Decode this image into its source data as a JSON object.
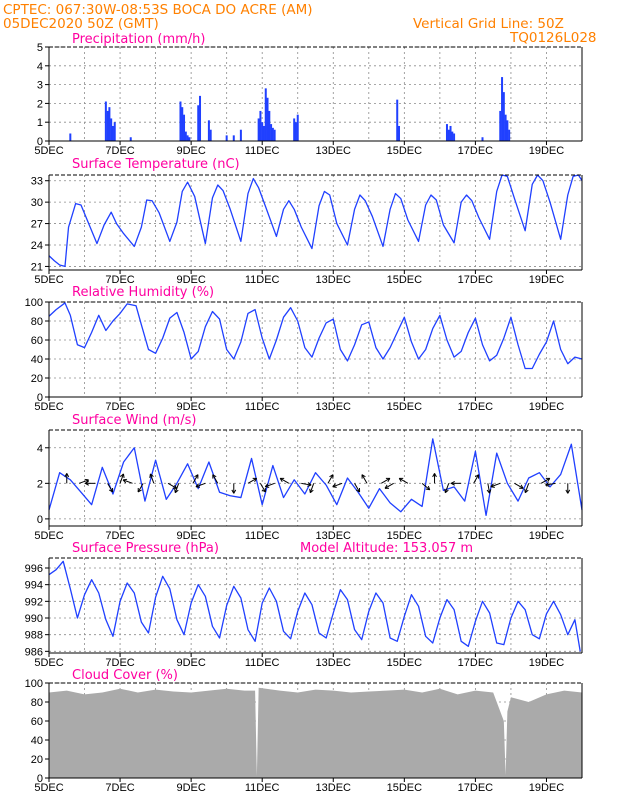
{
  "header": {
    "line1": "CPTEC:   067:30W-08:53S   BOCA DO ACRE (AM)",
    "line2": "05DEC2020 50Z (GMT)",
    "vgrid": "Vertical Grid Line: 50Z",
    "code": "TQ0126L028"
  },
  "colors": {
    "header": "#ff8000",
    "title": "#ff00a0",
    "series": "#2040ff",
    "cloud": "#aaaaaa"
  },
  "chart_data": [
    {
      "id": "precip",
      "type": "bar",
      "title": "Precipitation (mm/h)",
      "ylim": [
        0,
        5
      ],
      "yticks": [
        "0",
        "1",
        "2",
        "3",
        "4",
        "5"
      ],
      "xtick_labels": [
        "5DEC",
        "7DEC",
        "9DEC",
        "11DEC",
        "13DEC",
        "15DEC",
        "17DEC",
        "19DEC"
      ],
      "x_days": [
        0.6,
        1.6,
        1.65,
        1.7,
        1.75,
        1.8,
        1.85,
        2.3,
        3.7,
        3.75,
        3.8,
        3.85,
        3.9,
        3.95,
        4.2,
        4.25,
        4.5,
        4.55,
        5.0,
        5.2,
        5.4,
        5.9,
        5.95,
        6.0,
        6.05,
        6.1,
        6.15,
        6.2,
        6.25,
        6.3,
        6.35,
        6.9,
        6.95,
        7.0,
        9.8,
        9.85,
        11.2,
        11.25,
        11.3,
        11.35,
        11.4,
        12.2,
        12.7,
        12.75,
        12.8,
        12.85,
        12.9,
        12.95
      ],
      "values": [
        0.4,
        2.1,
        1.6,
        1.8,
        1.2,
        0.8,
        1.0,
        0.2,
        2.1,
        1.8,
        1.4,
        0.5,
        0.3,
        0.2,
        1.9,
        2.4,
        1.1,
        0.6,
        0.3,
        0.3,
        0.6,
        1.2,
        1.6,
        1.0,
        0.8,
        2.8,
        2.3,
        1.6,
        0.9,
        0.7,
        0.6,
        1.2,
        1.0,
        1.4,
        2.2,
        0.8,
        0.9,
        0.6,
        0.8,
        0.5,
        0.4,
        0.2,
        1.6,
        3.4,
        2.6,
        1.4,
        1.1,
        0.6
      ]
    },
    {
      "id": "temp",
      "type": "line",
      "title": "Surface Temperature (nC)",
      "ylim": [
        20.5,
        33.8
      ],
      "yticks": [
        "21",
        "24",
        "27",
        "30",
        "33"
      ],
      "xtick_labels": [
        "5DEC",
        "7DEC",
        "9DEC",
        "11DEC",
        "13DEC",
        "15DEC",
        "17DEC",
        "19DEC"
      ],
      "x_days": [
        0,
        0.15,
        0.3,
        0.45,
        0.55,
        0.75,
        0.9,
        1.1,
        1.35,
        1.55,
        1.75,
        1.9,
        2.1,
        2.4,
        2.6,
        2.75,
        2.9,
        3.1,
        3.4,
        3.6,
        3.75,
        3.9,
        4.1,
        4.4,
        4.6,
        4.75,
        4.9,
        5.1,
        5.4,
        5.6,
        5.75,
        5.9,
        6.1,
        6.4,
        6.6,
        6.75,
        6.9,
        7.1,
        7.4,
        7.6,
        7.75,
        7.9,
        8.1,
        8.4,
        8.6,
        8.75,
        8.9,
        9.1,
        9.4,
        9.6,
        9.75,
        9.9,
        10.1,
        10.4,
        10.6,
        10.75,
        10.9,
        11.1,
        11.4,
        11.6,
        11.75,
        11.9,
        12.1,
        12.4,
        12.6,
        12.75,
        12.9,
        13.1,
        13.4,
        13.6,
        13.75,
        13.9,
        14.1,
        14.4,
        14.6,
        14.75,
        14.9,
        15.0
      ],
      "values": [
        22.5,
        21.8,
        21.2,
        21.0,
        26.5,
        29.8,
        29.6,
        27.2,
        24.2,
        26.8,
        28.6,
        27.0,
        25.6,
        23.8,
        26.5,
        30.3,
        30.2,
        28.5,
        24.5,
        27.2,
        31.5,
        32.8,
        30.8,
        24.2,
        30.6,
        32.4,
        31.6,
        29.0,
        24.5,
        31.2,
        33.3,
        32.0,
        29.3,
        25.2,
        29.0,
        30.2,
        29.0,
        26.5,
        23.5,
        29.5,
        31.5,
        31.0,
        27.0,
        24.0,
        29.0,
        31.0,
        30.2,
        28.0,
        23.8,
        29.0,
        31.2,
        30.5,
        27.5,
        24.5,
        29.6,
        31.0,
        30.3,
        26.8,
        24.3,
        30.0,
        31.0,
        30.2,
        27.8,
        24.8,
        31.5,
        33.8,
        33.6,
        30.5,
        26.0,
        32.5,
        33.8,
        33.0,
        30.0,
        24.8,
        31.0,
        33.6,
        33.8,
        33.0
      ]
    },
    {
      "id": "rh",
      "type": "line",
      "title": "Relative Humidity (%)",
      "ylim": [
        0,
        100
      ],
      "yticks": [
        "0",
        "20",
        "40",
        "60",
        "80",
        "100"
      ],
      "xtick_labels": [
        "5DEC",
        "7DEC",
        "9DEC",
        "11DEC",
        "13DEC",
        "15DEC",
        "17DEC",
        "19DEC"
      ],
      "x_days": [
        0,
        0.2,
        0.45,
        0.6,
        0.8,
        1.0,
        1.2,
        1.4,
        1.6,
        1.8,
        2.0,
        2.2,
        2.45,
        2.6,
        2.8,
        3.0,
        3.2,
        3.4,
        3.6,
        3.8,
        4.0,
        4.2,
        4.4,
        4.6,
        4.8,
        5.0,
        5.2,
        5.4,
        5.6,
        5.8,
        6.0,
        6.2,
        6.4,
        6.6,
        6.8,
        7.0,
        7.2,
        7.4,
        7.6,
        7.8,
        8.0,
        8.2,
        8.4,
        8.6,
        8.8,
        9.0,
        9.2,
        9.4,
        9.6,
        9.8,
        10.0,
        10.2,
        10.4,
        10.6,
        10.8,
        11.0,
        11.2,
        11.4,
        11.6,
        11.8,
        12.0,
        12.2,
        12.4,
        12.6,
        12.8,
        13.0,
        13.2,
        13.4,
        13.6,
        13.8,
        14.0,
        14.2,
        14.4,
        14.6,
        14.8,
        15.0
      ],
      "values": [
        85,
        92,
        99,
        86,
        55,
        52,
        68,
        86,
        70,
        80,
        88,
        98,
        96,
        76,
        50,
        46,
        62,
        83,
        89,
        68,
        40,
        48,
        74,
        90,
        82,
        50,
        40,
        58,
        88,
        92,
        62,
        40,
        60,
        84,
        94,
        80,
        52,
        42,
        62,
        78,
        82,
        50,
        38,
        55,
        76,
        79,
        52,
        40,
        52,
        68,
        84,
        58,
        40,
        50,
        72,
        86,
        60,
        42,
        48,
        68,
        83,
        55,
        38,
        44,
        62,
        84,
        55,
        30,
        30,
        45,
        58,
        80,
        50,
        35,
        42,
        40
      ]
    },
    {
      "id": "wind",
      "type": "line",
      "title": "Surface Wind (m/s)",
      "ylim": [
        -0.4,
        5.0
      ],
      "yticks": [
        "0",
        "2",
        "4"
      ],
      "xtick_labels": [
        "5DEC",
        "7DEC",
        "9DEC",
        "11DEC",
        "13DEC",
        "15DEC",
        "17DEC",
        "19DEC"
      ],
      "x_days": [
        0,
        0.3,
        0.6,
        0.9,
        1.2,
        1.5,
        1.8,
        2.1,
        2.4,
        2.7,
        3.0,
        3.3,
        3.6,
        3.9,
        4.2,
        4.5,
        4.8,
        5.1,
        5.4,
        5.7,
        6.0,
        6.3,
        6.6,
        6.9,
        7.2,
        7.5,
        7.8,
        8.1,
        8.4,
        8.7,
        9.0,
        9.3,
        9.6,
        9.9,
        10.2,
        10.5,
        10.8,
        11.1,
        11.4,
        11.7,
        12.0,
        12.3,
        12.6,
        12.9,
        13.2,
        13.5,
        13.8,
        14.1,
        14.4,
        14.7,
        15.0
      ],
      "values": [
        0.5,
        2.6,
        2.2,
        1.5,
        0.8,
        2.9,
        1.4,
        3.2,
        4.0,
        1.0,
        3.3,
        1.1,
        2.0,
        3.1,
        1.7,
        3.2,
        1.5,
        1.3,
        1.2,
        3.4,
        0.8,
        3.0,
        1.2,
        2.2,
        1.4,
        2.6,
        1.9,
        0.8,
        2.3,
        1.5,
        0.6,
        1.7,
        0.9,
        0.4,
        1.1,
        0.7,
        4.5,
        1.6,
        1.8,
        1.0,
        3.8,
        0.2,
        3.7,
        2.0,
        1.0,
        2.3,
        2.6,
        1.8,
        2.5,
        4.2,
        0.5
      ],
      "arrows_days": [
        0.5,
        0.85,
        1.3,
        1.65,
        2.0,
        2.35,
        2.65,
        2.95,
        3.35,
        3.65,
        4.05,
        4.4,
        4.75,
        5.2,
        5.6,
        5.95,
        6.35,
        6.75,
        7.1,
        7.45,
        7.85,
        8.25,
        8.6,
        8.95,
        9.35,
        9.7,
        10.1,
        10.5,
        10.85,
        11.25,
        11.6,
        11.95,
        12.35,
        12.7,
        13.1,
        13.5,
        13.85,
        14.25,
        14.6
      ],
      "arrows_deg": [
        90,
        20,
        180,
        300,
        70,
        160,
        240,
        110,
        330,
        250,
        60,
        200,
        120,
        270,
        30,
        300,
        200,
        150,
        350,
        250,
        60,
        200,
        300,
        120,
        30,
        210,
        150,
        320,
        90,
        250,
        180,
        60,
        280,
        200,
        330,
        250,
        30,
        190,
        270
      ]
    },
    {
      "id": "pressure",
      "type": "line",
      "title": "Surface Pressure (hPa)",
      "annotation": "Model Altitude: 153.057 m",
      "ylim": [
        985.8,
        997.2
      ],
      "yticks": [
        "986",
        "988",
        "990",
        "992",
        "994",
        "996"
      ],
      "xtick_labels": [
        "5DEC",
        "7DEC",
        "9DEC",
        "11DEC",
        "13DEC",
        "15DEC",
        "17DEC",
        "19DEC"
      ],
      "x_days": [
        0,
        0.2,
        0.4,
        0.6,
        0.8,
        1.0,
        1.2,
        1.4,
        1.6,
        1.8,
        2.0,
        2.2,
        2.4,
        2.6,
        2.8,
        3.0,
        3.2,
        3.4,
        3.6,
        3.8,
        4.0,
        4.2,
        4.4,
        4.6,
        4.8,
        5.0,
        5.2,
        5.4,
        5.6,
        5.8,
        6.0,
        6.2,
        6.4,
        6.6,
        6.8,
        7.0,
        7.2,
        7.4,
        7.6,
        7.8,
        8.0,
        8.2,
        8.4,
        8.6,
        8.8,
        9.0,
        9.2,
        9.4,
        9.6,
        9.8,
        10.0,
        10.2,
        10.4,
        10.6,
        10.8,
        11.0,
        11.2,
        11.4,
        11.6,
        11.8,
        12.0,
        12.2,
        12.4,
        12.6,
        12.8,
        13.0,
        13.2,
        13.4,
        13.6,
        13.8,
        14.0,
        14.2,
        14.4,
        14.6,
        14.8,
        14.95
      ],
      "values": [
        995.2,
        995.8,
        996.8,
        993.5,
        990.0,
        992.8,
        994.6,
        993.0,
        989.8,
        987.8,
        992.0,
        994.2,
        993.0,
        989.5,
        988.2,
        992.5,
        995.0,
        993.5,
        989.8,
        988.0,
        991.8,
        994.0,
        992.6,
        989.0,
        987.6,
        991.5,
        993.8,
        992.4,
        988.6,
        987.2,
        991.8,
        993.6,
        992.0,
        988.4,
        987.5,
        990.8,
        993.0,
        991.6,
        988.2,
        987.6,
        990.6,
        993.4,
        992.2,
        988.6,
        987.4,
        990.8,
        993.0,
        991.8,
        987.6,
        987.2,
        990.2,
        992.8,
        991.4,
        987.8,
        987.0,
        990.0,
        992.2,
        991.0,
        987.2,
        986.6,
        989.6,
        992.0,
        990.6,
        987.0,
        986.8,
        990.0,
        992.0,
        991.0,
        988.0,
        987.5,
        990.5,
        992.0,
        990.4,
        988.0,
        989.8,
        986.0
      ]
    },
    {
      "id": "cloud",
      "type": "area",
      "title": "Cloud Cover (%)",
      "ylim": [
        0,
        100
      ],
      "yticks": [
        "0",
        "20",
        "40",
        "60",
        "80",
        "100"
      ],
      "xtick_labels": [
        "5DEC",
        "7DEC",
        "9DEC",
        "11DEC",
        "13DEC",
        "15DEC",
        "17DEC",
        "19DEC"
      ],
      "x_days": [
        0,
        0.5,
        1.0,
        1.5,
        2.0,
        2.5,
        3.0,
        3.5,
        4.0,
        4.5,
        5.0,
        5.5,
        5.8,
        5.85,
        5.9,
        6.5,
        7.0,
        7.5,
        8.0,
        8.5,
        9.0,
        9.5,
        10.0,
        10.5,
        11.0,
        11.5,
        12.0,
        12.5,
        12.8,
        12.85,
        12.9,
        13.0,
        13.5,
        14.0,
        14.5,
        15.0
      ],
      "values": [
        90,
        92,
        88,
        90,
        94,
        90,
        93,
        91,
        90,
        92,
        94,
        92,
        92,
        2,
        95,
        92,
        90,
        93,
        92,
        90,
        91,
        92,
        93,
        90,
        94,
        88,
        92,
        90,
        60,
        3,
        70,
        85,
        80,
        88,
        92,
        90
      ]
    }
  ]
}
